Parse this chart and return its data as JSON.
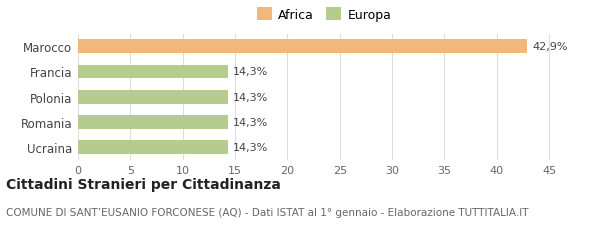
{
  "categories": [
    "Ucraina",
    "Romania",
    "Polonia",
    "Francia",
    "Marocco"
  ],
  "values": [
    14.3,
    14.3,
    14.3,
    14.3,
    42.9
  ],
  "colors": [
    "#b5cc8e",
    "#b5cc8e",
    "#b5cc8e",
    "#b5cc8e",
    "#f0b97a"
  ],
  "labels": [
    "14,3%",
    "14,3%",
    "14,3%",
    "14,3%",
    "42,9%"
  ],
  "legend_items": [
    {
      "label": "Africa",
      "color": "#f0b97a"
    },
    {
      "label": "Europa",
      "color": "#b5cc8e"
    }
  ],
  "xlim": [
    0,
    47
  ],
  "xticks": [
    0,
    5,
    10,
    15,
    20,
    25,
    30,
    35,
    40,
    45
  ],
  "title": "Cittadini Stranieri per Cittadinanza",
  "subtitle": "COMUNE DI SANT’EUSANIO FORCONESE (AQ) - Dati ISTAT al 1° gennaio - Elaborazione TUTTITALIA.IT",
  "title_fontsize": 10,
  "subtitle_fontsize": 7.5,
  "label_fontsize": 8,
  "tick_fontsize": 8,
  "ytick_fontsize": 8.5,
  "bar_height": 0.55,
  "background_color": "#ffffff",
  "grid_color": "#dddddd",
  "text_color": "#666666"
}
